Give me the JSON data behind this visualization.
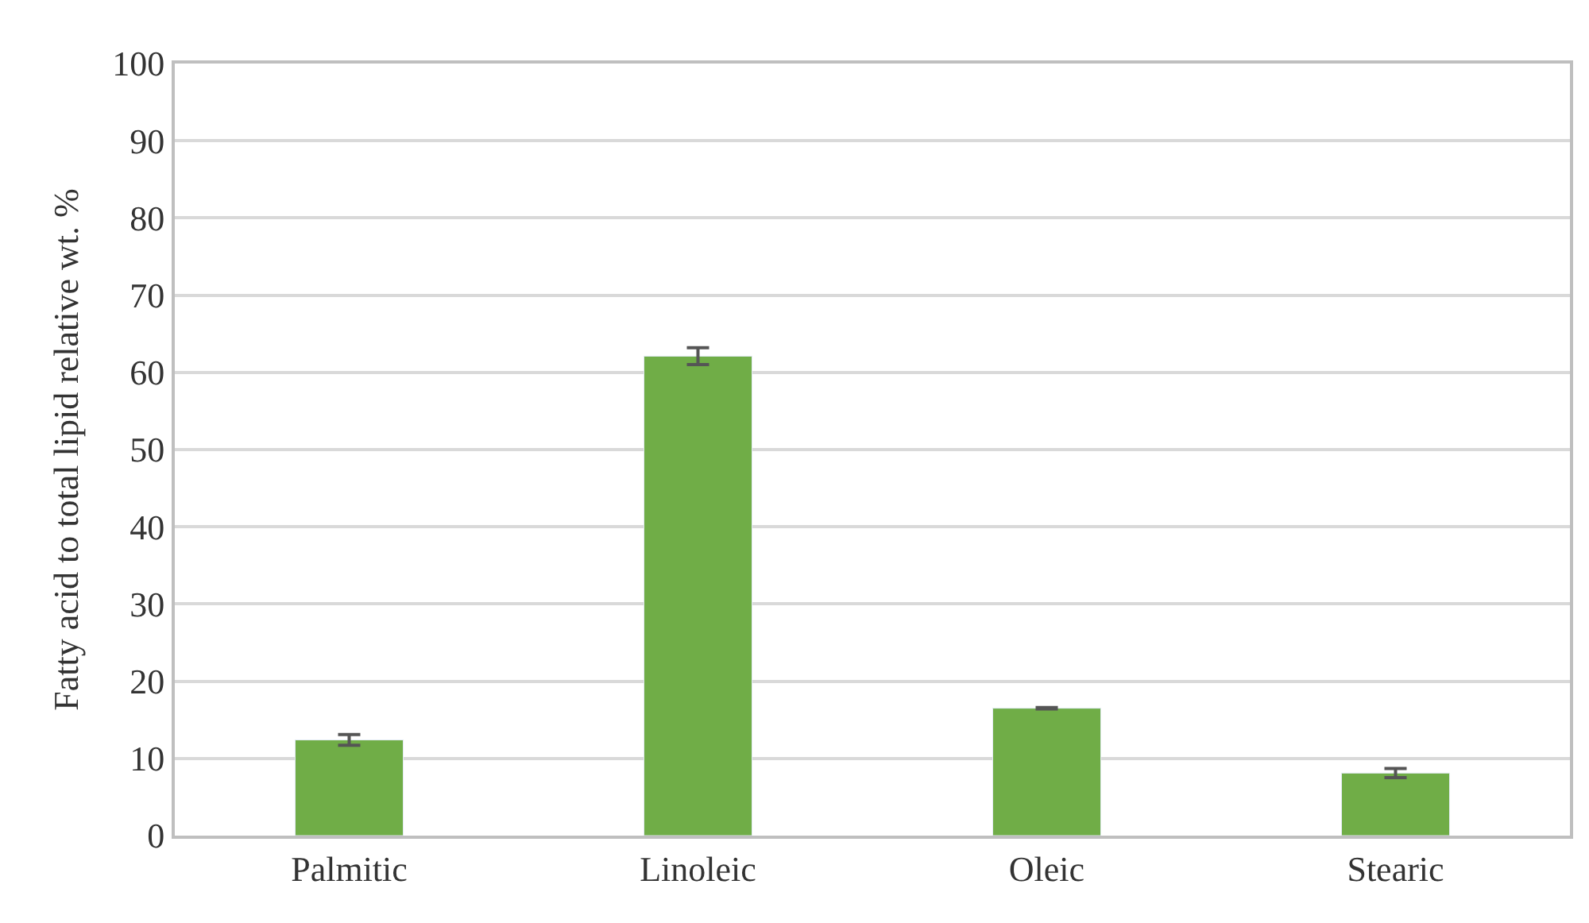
{
  "chart_data": {
    "type": "bar",
    "ylabel": "Fatty acid to total lipid relative wt. %",
    "categories": [
      "Palmitic",
      "Linoleic",
      "Oleic",
      "Stearic"
    ],
    "values": [
      12.4,
      62.1,
      16.5,
      8.1
    ],
    "errors": [
      0.7,
      1.1,
      0.1,
      0.6
    ],
    "color": "#70ad47",
    "ylim": [
      0,
      100
    ],
    "yticks": [
      0,
      10,
      20,
      30,
      40,
      50,
      60,
      70,
      80,
      90,
      100
    ],
    "grid": "y"
  }
}
